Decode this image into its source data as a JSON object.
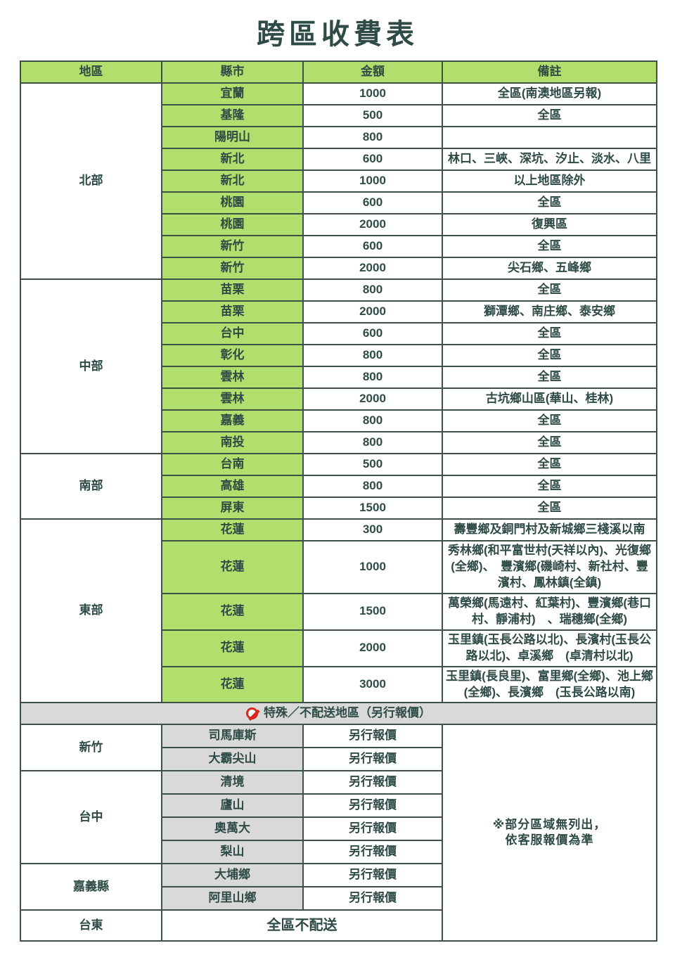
{
  "title": "跨區收費表",
  "colors": {
    "header_green": "#b2de6e",
    "special_grey": "#d9d9d9",
    "border": "#3e5147",
    "text": "#2e4b46",
    "alert_red": "#d6281e"
  },
  "table": {
    "headers": [
      "地區",
      "縣市",
      "金額",
      "備註"
    ],
    "sections": [
      {
        "region": "北部",
        "rows": [
          {
            "city": "宜蘭",
            "amount": "1000",
            "note": "全區(南澳地區另報)"
          },
          {
            "city": "基隆",
            "amount": "500",
            "note": "全區"
          },
          {
            "city": "陽明山",
            "amount": "800",
            "note": ""
          },
          {
            "city": "新北",
            "amount": "600",
            "note": "林口、三峽、深坑、汐止、淡水、八里"
          },
          {
            "city": "新北",
            "amount": "1000",
            "note": "以上地區除外"
          },
          {
            "city": "桃園",
            "amount": "600",
            "note": "全區"
          },
          {
            "city": "桃園",
            "amount": "2000",
            "note": "復興區"
          },
          {
            "city": "新竹",
            "amount": "600",
            "note": "全區"
          },
          {
            "city": "新竹",
            "amount": "2000",
            "note": "尖石鄉、五峰鄉"
          }
        ]
      },
      {
        "region": "中部",
        "rows": [
          {
            "city": "苗栗",
            "amount": "800",
            "note": "全區"
          },
          {
            "city": "苗栗",
            "amount": "2000",
            "note": "獅潭鄉、南庄鄉、泰安鄉"
          },
          {
            "city": "台中",
            "amount": "600",
            "note": "全區"
          },
          {
            "city": "彰化",
            "amount": "800",
            "note": "全區"
          },
          {
            "city": "雲林",
            "amount": "800",
            "note": "全區"
          },
          {
            "city": "雲林",
            "amount": "2000",
            "note": "古坑鄉山區(華山、桂林)"
          },
          {
            "city": "嘉義",
            "amount": "800",
            "note": "全區"
          },
          {
            "city": "南投",
            "amount": "800",
            "note": "全區"
          }
        ]
      },
      {
        "region": "南部",
        "rows": [
          {
            "city": "台南",
            "amount": "500",
            "note": "全區"
          },
          {
            "city": "高雄",
            "amount": "800",
            "note": "全區"
          },
          {
            "city": "屏東",
            "amount": "1500",
            "note": "全區"
          }
        ]
      },
      {
        "region": "東部",
        "rows": [
          {
            "city": "花蓮",
            "amount": "300",
            "note": "壽豐鄉及銅門村及新城鄉三棧溪以南"
          },
          {
            "city": "花蓮",
            "amount": "1000",
            "note": "秀林鄉(和平富世村(天祥以內)、光復鄉(全鄉)、　豐濱鄉(磯崎村、新社村、豐濱村、鳳林鎮(全鎮)"
          },
          {
            "city": "花蓮",
            "amount": "1500",
            "note": "萬榮鄉(馬遠村、紅葉村)、豐濱鄉(巷口村、靜浦村)　、瑞穗鄉(全鄉)"
          },
          {
            "city": "花蓮",
            "amount": "2000",
            "note": "玉里鎮(玉長公路以北)、長濱村(玉長公路以北)、卓溪鄉　(卓清村以北)"
          },
          {
            "city": "花蓮",
            "amount": "3000",
            "note": "玉里鎮(長良里)、富里鄉(全鄉)、池上鄉(全鄉)、長濱鄉　(玉長公路以南)"
          }
        ]
      }
    ],
    "banner": {
      "icon": "no-entry-icon",
      "text": "特殊／不配送地區（另行報價）"
    },
    "special_sections": [
      {
        "region": "新竹",
        "rows": [
          {
            "city": "司馬庫斯",
            "amount": "另行報價"
          },
          {
            "city": "大霸尖山",
            "amount": "另行報價"
          }
        ]
      },
      {
        "region": "台中",
        "rows": [
          {
            "city": "清境",
            "amount": "另行報價"
          },
          {
            "city": "廬山",
            "amount": "另行報價"
          },
          {
            "city": "奧萬大",
            "amount": "另行報價"
          },
          {
            "city": "梨山",
            "amount": "另行報價"
          }
        ]
      },
      {
        "region": "嘉義縣",
        "rows": [
          {
            "city": "大埔鄉",
            "amount": "另行報價"
          },
          {
            "city": "阿里山鄉",
            "amount": "另行報價"
          }
        ]
      },
      {
        "region": "台東",
        "rows": [
          {
            "merged": "全區不配送"
          }
        ]
      }
    ],
    "side_note": {
      "lines": [
        "※部分區域無列出，",
        "依客服報價為準"
      ]
    }
  }
}
